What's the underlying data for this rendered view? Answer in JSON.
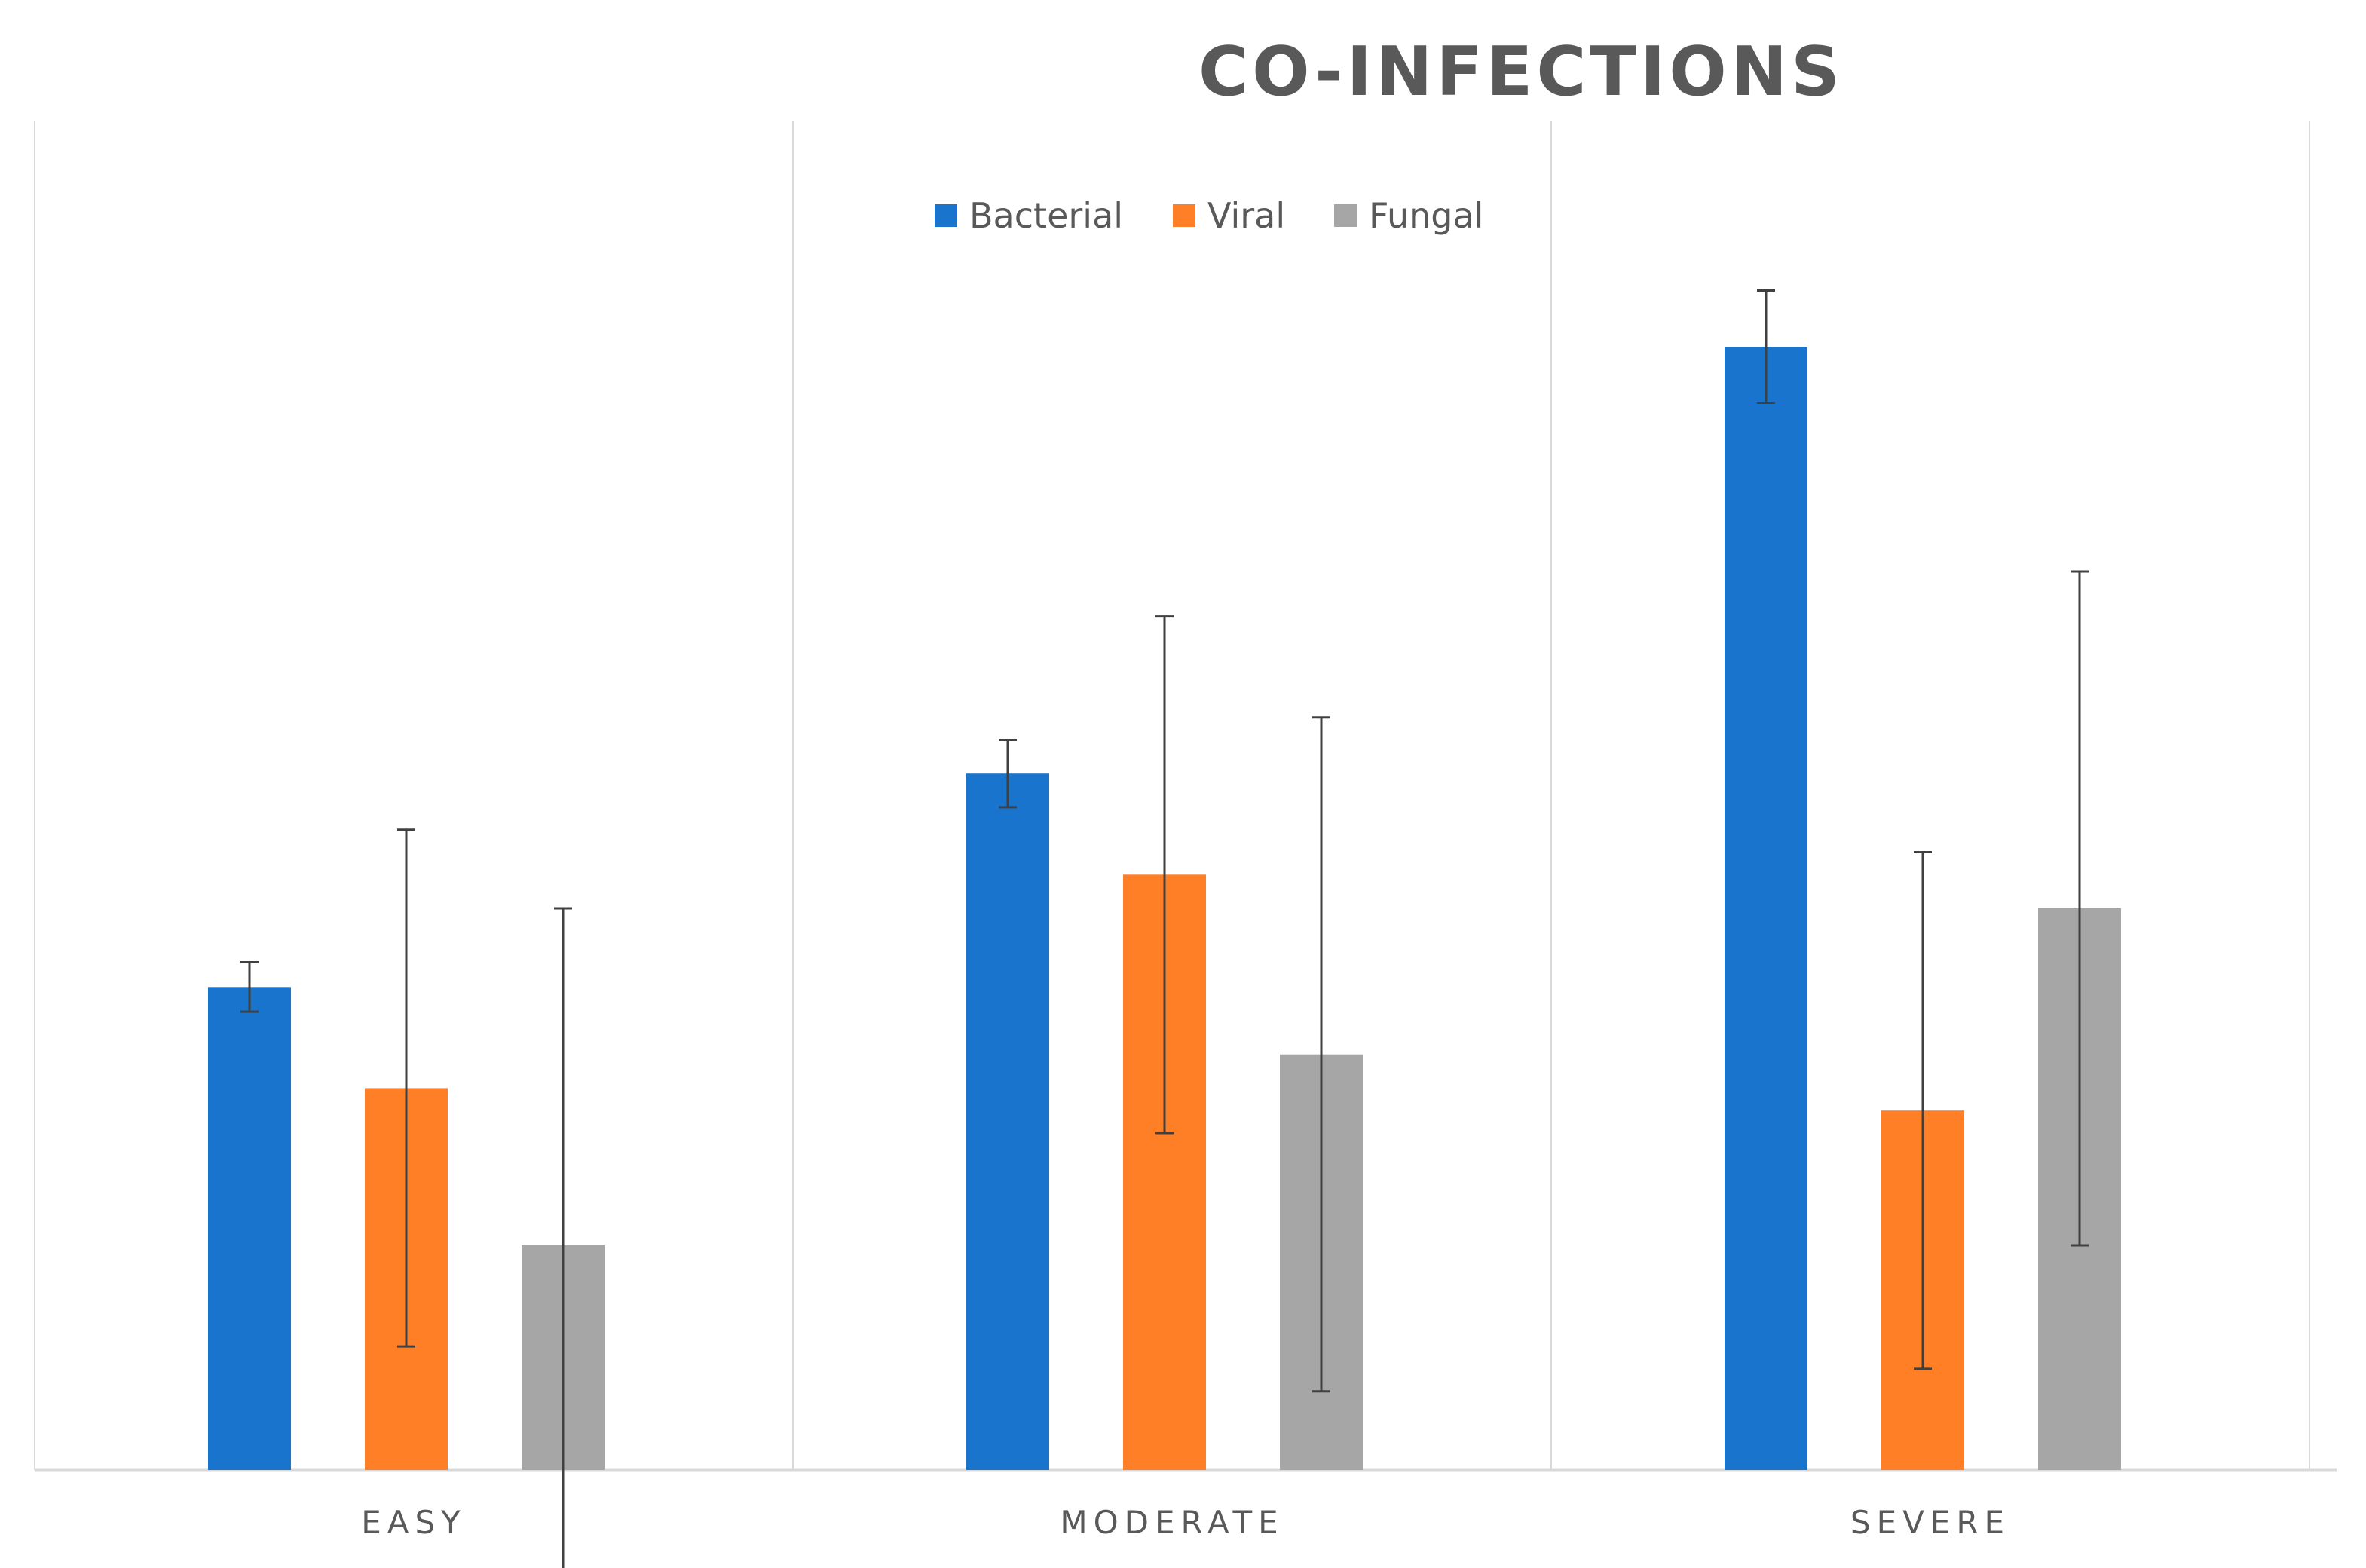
{
  "chart_data": {
    "type": "bar",
    "title": "CO-INFECTIONS",
    "categories": [
      "EASY",
      "MODERATE",
      "SEVERE"
    ],
    "series": [
      {
        "name": "Bacterial",
        "color": "#1874CD",
        "values": [
          43,
          62,
          100
        ],
        "error": [
          2.2,
          3,
          5
        ]
      },
      {
        "name": "Viral",
        "color": "#FF7F27",
        "values": [
          34,
          53,
          32
        ],
        "error": [
          23,
          23,
          23
        ]
      },
      {
        "name": "Fungal",
        "color": "#A6A6A6",
        "values": [
          20,
          37,
          50
        ],
        "error": [
          30,
          30,
          30
        ]
      }
    ],
    "xlabel": "",
    "ylabel": "",
    "ylim": [
      0,
      120
    ],
    "grid": false,
    "legend": "top-center"
  }
}
